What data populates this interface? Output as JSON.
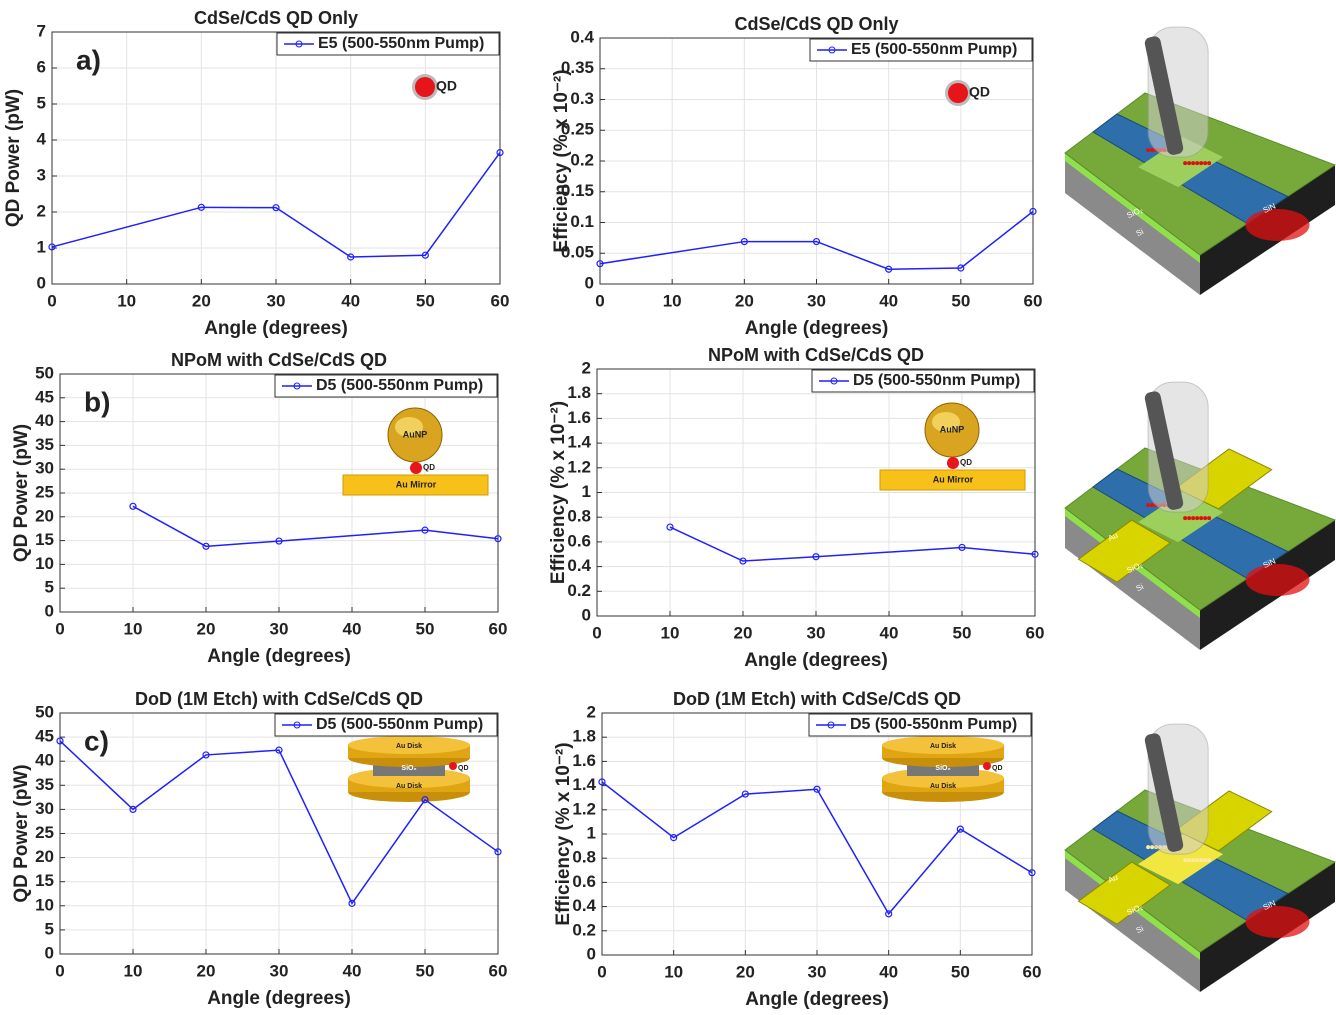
{
  "chart_data": [
    {
      "type": "line",
      "panel_label": "a)",
      "title": "CdSe/CdS QD Only",
      "xlabel": "Angle (degrees)",
      "ylabel": "QD Power (pW)",
      "x": [
        0,
        20,
        30,
        40,
        50,
        60
      ],
      "series": [
        {
          "name": "E5 (500-550nm Pump)",
          "color": "#1f1fff",
          "values": [
            1.03,
            2.13,
            2.12,
            0.75,
            0.8,
            3.65
          ]
        }
      ],
      "xlim": [
        0,
        60
      ],
      "xticks": [
        0,
        10,
        20,
        30,
        40,
        50,
        60
      ],
      "ylim": [
        0,
        7
      ],
      "yticks": [
        0,
        1,
        2,
        3,
        4,
        5,
        6,
        7
      ],
      "grid": true,
      "legend": "top-right",
      "inset_labels": [
        "QD"
      ]
    },
    {
      "type": "line",
      "title": "CdSe/CdS QD Only",
      "xlabel": "Angle (degrees)",
      "ylabel": "Efficiency (% x 10⁻²)",
      "x": [
        0,
        20,
        30,
        40,
        50,
        60
      ],
      "series": [
        {
          "name": "E5 (500-550nm Pump)",
          "color": "#1f1fff",
          "values": [
            0.033,
            0.069,
            0.069,
            0.024,
            0.026,
            0.118
          ]
        }
      ],
      "xlim": [
        0,
        60
      ],
      "xticks": [
        0,
        10,
        20,
        30,
        40,
        50,
        60
      ],
      "ylim": [
        0,
        0.4
      ],
      "yticks": [
        0,
        0.05,
        0.1,
        0.15,
        0.2,
        0.25,
        0.3,
        0.35,
        0.4
      ],
      "grid": true,
      "legend": "top-right",
      "inset_labels": [
        "QD"
      ]
    },
    {
      "type": "line",
      "panel_label": "b)",
      "title": "NPoM with CdSe/CdS QD",
      "xlabel": "Angle (degrees)",
      "ylabel": "QD Power (pW)",
      "x": [
        10,
        20,
        30,
        50,
        60
      ],
      "series": [
        {
          "name": "D5 (500-550nm Pump)",
          "color": "#1f1fff",
          "values": [
            22.2,
            13.8,
            14.9,
            17.2,
            15.4
          ]
        }
      ],
      "xlim": [
        0,
        60
      ],
      "xticks": [
        0,
        10,
        20,
        30,
        40,
        50,
        60
      ],
      "ylim": [
        0,
        50
      ],
      "yticks": [
        0,
        5,
        10,
        15,
        20,
        25,
        30,
        35,
        40,
        45,
        50
      ],
      "grid": true,
      "legend": "top-right",
      "inset_labels": [
        "AuNP",
        "QD",
        "Au Mirror"
      ]
    },
    {
      "type": "line",
      "title": "NPoM with CdSe/CdS QD",
      "xlabel": "Angle (degrees)",
      "ylabel": "Efficiency (% x 10⁻²)",
      "x": [
        10,
        20,
        30,
        50,
        60
      ],
      "series": [
        {
          "name": "D5 (500-550nm Pump)",
          "color": "#1f1fff",
          "values": [
            0.72,
            0.445,
            0.48,
            0.555,
            0.5
          ]
        }
      ],
      "xlim": [
        0,
        60
      ],
      "xticks": [
        0,
        10,
        20,
        30,
        40,
        50,
        60
      ],
      "ylim": [
        0,
        2
      ],
      "yticks": [
        0,
        0.2,
        0.4,
        0.6,
        0.8,
        1,
        1.2,
        1.4,
        1.6,
        1.8,
        2
      ],
      "grid": true,
      "legend": "top-right",
      "inset_labels": [
        "AuNP",
        "QD",
        "Au Mirror"
      ]
    },
    {
      "type": "line",
      "panel_label": "c)",
      "title": "DoD (1M Etch) with CdSe/CdS QD",
      "xlabel": "Angle (degrees)",
      "ylabel": "QD Power (pW)",
      "x": [
        0,
        10,
        20,
        30,
        40,
        50,
        60
      ],
      "series": [
        {
          "name": "D5 (500-550nm Pump)",
          "color": "#1f1fff",
          "values": [
            44.2,
            30,
            41.3,
            42.3,
            10.5,
            32,
            21.2
          ]
        }
      ],
      "xlim": [
        0,
        60
      ],
      "xticks": [
        0,
        10,
        20,
        30,
        40,
        50,
        60
      ],
      "ylim": [
        0,
        50
      ],
      "yticks": [
        0,
        5,
        10,
        15,
        20,
        25,
        30,
        35,
        40,
        45,
        50
      ],
      "grid": true,
      "legend": "top-right",
      "inset_labels": [
        "Au Disk",
        "SiO₂",
        "Au Disk",
        "QD"
      ]
    },
    {
      "type": "line",
      "title": "DoD (1M Etch) with CdSe/CdS QD",
      "xlabel": "Angle (degrees)",
      "ylabel": "Efficiency (% x 10⁻²)",
      "x": [
        0,
        10,
        20,
        30,
        40,
        50,
        60
      ],
      "series": [
        {
          "name": "D5 (500-550nm Pump)",
          "color": "#1f1fff",
          "values": [
            1.43,
            0.97,
            1.33,
            1.37,
            0.34,
            1.04,
            0.68
          ]
        }
      ],
      "xlim": [
        0,
        60
      ],
      "xticks": [
        0,
        10,
        20,
        30,
        40,
        50,
        60
      ],
      "ylim": [
        0,
        2
      ],
      "yticks": [
        0,
        0.2,
        0.4,
        0.6,
        0.8,
        1,
        1.2,
        1.4,
        1.6,
        1.8,
        2
      ],
      "grid": true,
      "legend": "top-right",
      "inset_labels": [
        "Au Disk",
        "SiO₂",
        "Au Disk",
        "QD"
      ]
    }
  ],
  "illustrations": [
    [
      "SiN",
      "SiO₂",
      "Si"
    ],
    [
      "Au",
      "SiN",
      "SiO₂",
      "Si"
    ],
    [
      "Au",
      "SiN",
      "SiO₂",
      "Si"
    ]
  ]
}
